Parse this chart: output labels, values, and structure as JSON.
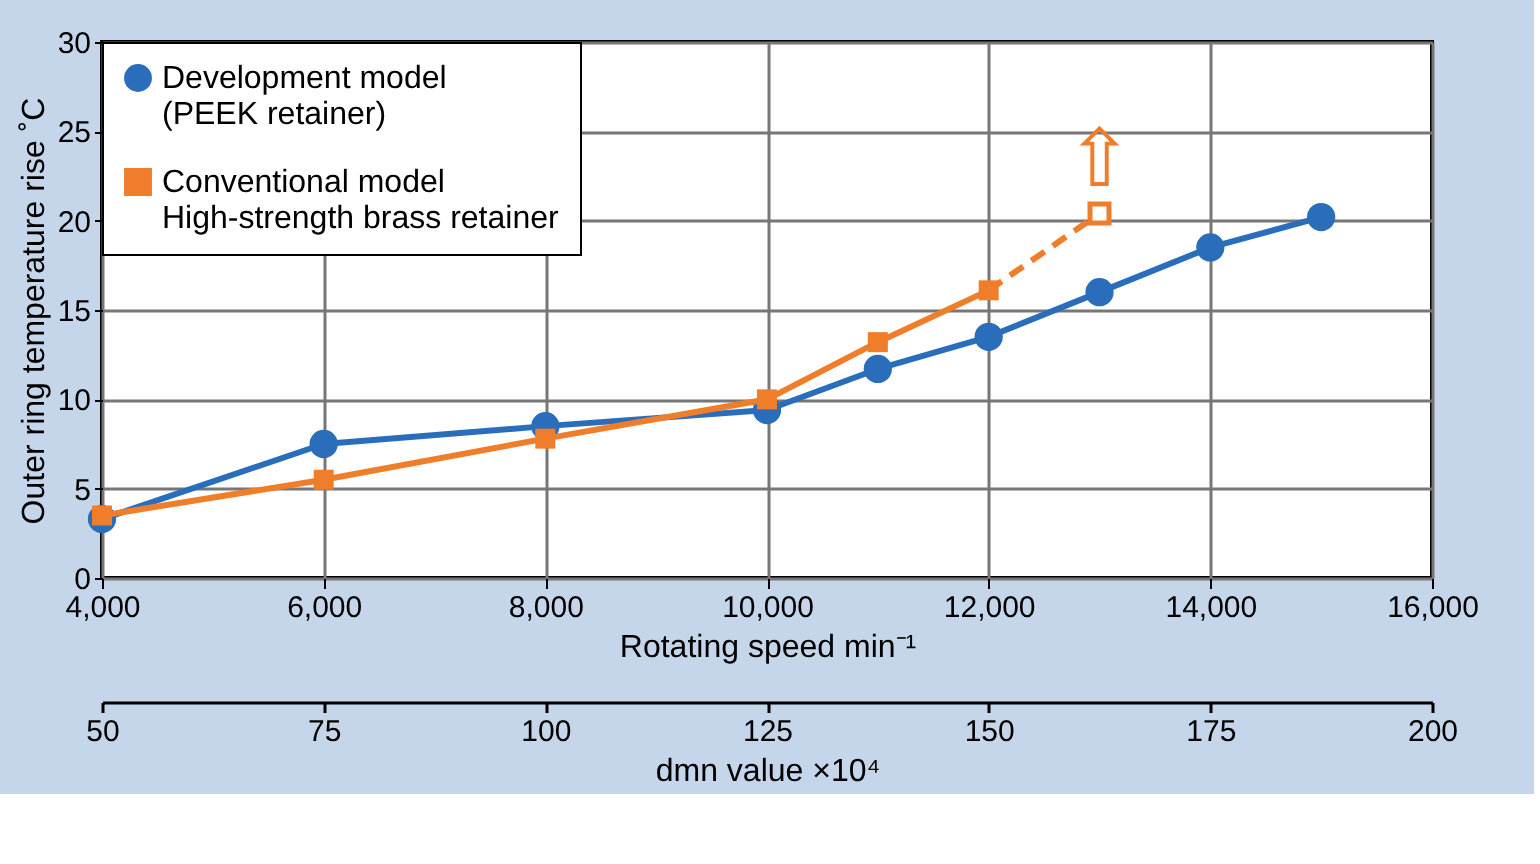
{
  "chart_data": {
    "type": "line",
    "xlabel": "Rotating speed   min⁻¹",
    "ylabel": "Outer ring temperature rise  ˚C",
    "x2label": "dmn value  ×10⁴",
    "xlim": [
      4000,
      16000
    ],
    "xticks": [
      {
        "value": 4000,
        "label": "4,000"
      },
      {
        "value": 6000,
        "label": "6,000"
      },
      {
        "value": 8000,
        "label": "8,000"
      },
      {
        "value": 10000,
        "label": "10,000"
      },
      {
        "value": 12000,
        "label": "12,000"
      },
      {
        "value": 14000,
        "label": "14,000"
      },
      {
        "value": 16000,
        "label": "16,000"
      }
    ],
    "x2lim": [
      50,
      200
    ],
    "x2ticks": [
      50,
      75,
      100,
      125,
      150,
      175,
      200
    ],
    "ylim": [
      0,
      30
    ],
    "yticks": [
      0,
      5,
      10,
      15,
      20,
      25,
      30
    ],
    "grid": true,
    "legend": "top left",
    "series": [
      {
        "color": "#f07d2a",
        "line_style": "dashed",
        "marker": "square",
        "x": [
          12000,
          13000
        ],
        "values": [
          16.1,
          20.4
        ]
      },
      {
        "name": "Development model\n(PEEK retainer)",
        "color": "#2a6ebb",
        "marker": "circle",
        "line_style": "solid",
        "x": [
          4000,
          6000,
          8000,
          10000,
          11000,
          12000,
          13000,
          14000,
          15000
        ],
        "values": [
          3.3,
          7.5,
          8.5,
          9.4,
          11.7,
          13.5,
          16,
          18.5,
          20.2
        ]
      },
      {
        "name": "Conventional model\nHigh-strength brass retainer",
        "color": "#f07d2a",
        "marker": "square",
        "line_style": "solid",
        "x": [
          4000,
          6000,
          8000,
          10000,
          11000,
          12000
        ],
        "values": [
          3.5,
          5.5,
          7.8,
          10,
          13.2,
          16.1
        ]
      }
    ],
    "annotations": [
      "⇧"
    ]
  }
}
